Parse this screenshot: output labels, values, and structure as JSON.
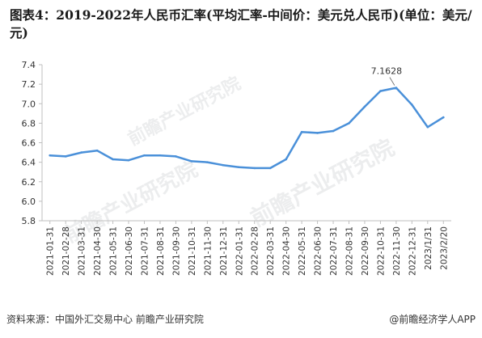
{
  "chart_data": {
    "type": "line",
    "title": "图表4：2019-2022年人民币汇率(平均汇率-中间价：美元兑人民币)(单位：美元/元)",
    "xlabel": "",
    "ylabel": "",
    "ylim": [
      5.8,
      7.4
    ],
    "yticks": [
      "5.8",
      "6.0",
      "6.2",
      "6.4",
      "6.6",
      "6.8",
      "7.0",
      "7.2",
      "7.4"
    ],
    "grid": false,
    "legend": "none",
    "x": [
      "2021-01-31",
      "2021-02-28",
      "2021-03-31",
      "2021-04-30",
      "2021-05-31",
      "2021-06-30",
      "2021-07-31",
      "2021-08-31",
      "2021-09-30",
      "2021-10-31",
      "2021-11-30",
      "2021-12-31",
      "2022-01-31",
      "2022-02-28",
      "2022-03-31",
      "2022-04-30",
      "2022-05-31",
      "2022-06-30",
      "2022-07-31",
      "2022-08-31",
      "2022-09-30",
      "2022-10-31",
      "2022-11-30",
      "2022-12-31",
      "2023/1/31",
      "2023/2/20"
    ],
    "series": [
      {
        "values": [
          6.47,
          6.46,
          6.5,
          6.52,
          6.43,
          6.42,
          6.47,
          6.47,
          6.46,
          6.41,
          6.4,
          6.37,
          6.35,
          6.34,
          6.34,
          6.43,
          6.71,
          6.7,
          6.72,
          6.8,
          6.97,
          7.13,
          7.1628,
          6.99,
          6.76,
          6.86
        ],
        "color": "#4a90d9"
      }
    ],
    "annotations": [
      {
        "label": "7.1628",
        "index": 22
      }
    ]
  },
  "footer": {
    "source": "资料来源：中国外汇交易中心 前瞻产业研究院",
    "credit": "@前瞻经济学人APP"
  },
  "watermark": {
    "text": "前瞻产业研究院"
  }
}
